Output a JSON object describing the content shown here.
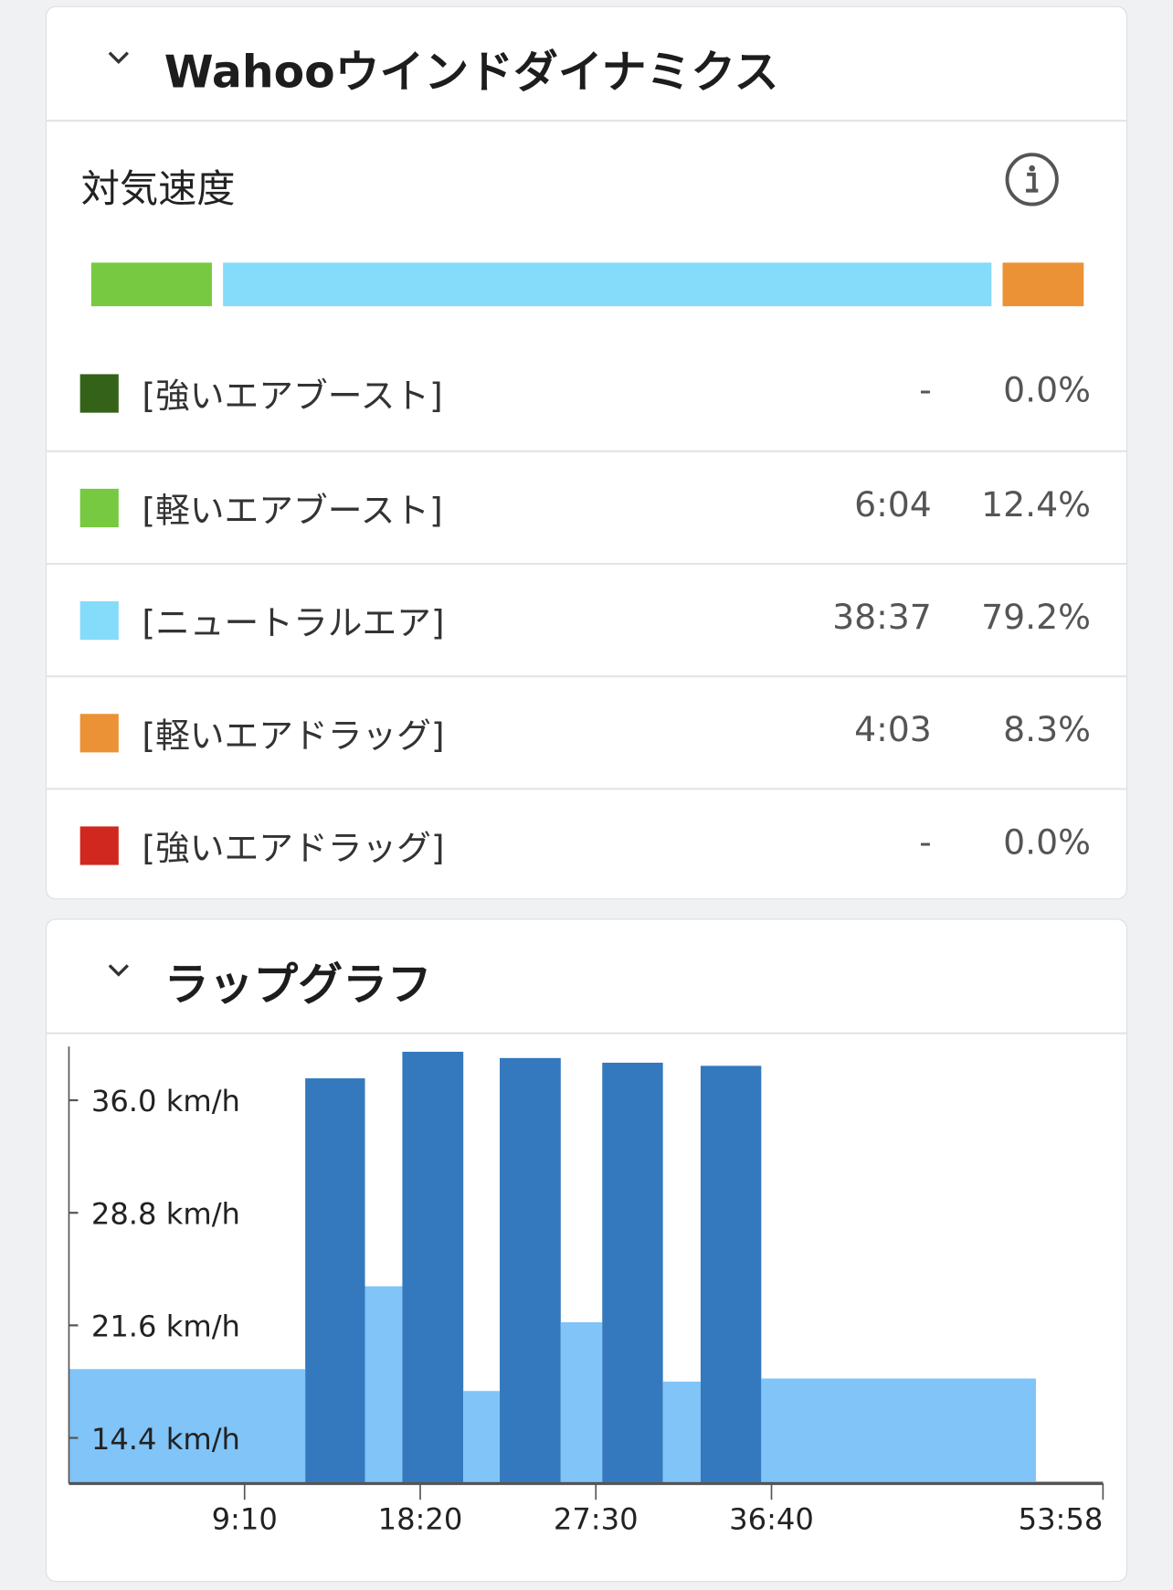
{
  "wind_card": {
    "title": "Wahooウインドダイナミクス",
    "subtitle": "対気速度",
    "icons": {
      "collapse": "chevron-down-icon",
      "info": "info-icon"
    },
    "bar": [
      {
        "color": "#76c940",
        "percent": 12.4
      },
      {
        "color": "#84dbfa",
        "percent": 79.2
      },
      {
        "color": "#ec9236",
        "percent": 8.3
      }
    ],
    "zones": [
      {
        "label": "[強いエアブースト]",
        "time": "-",
        "percent": "0.0%",
        "color": "#356219"
      },
      {
        "label": "[軽いエアブースト]",
        "time": "6:04",
        "percent": "12.4%",
        "color": "#76c940"
      },
      {
        "label": "[ニュートラルエア]",
        "time": "38:37",
        "percent": "79.2%",
        "color": "#84dbfa"
      },
      {
        "label": "[軽いエアドラッグ]",
        "time": "4:03",
        "percent": "8.3%",
        "color": "#ec9236"
      },
      {
        "label": "[強いエアドラッグ]",
        "time": "-",
        "percent": "0.0%",
        "color": "#d0281e"
      }
    ]
  },
  "lap_card": {
    "title": "ラップグラフ"
  },
  "chart_data": {
    "type": "bar",
    "x_unit": "elapsed time",
    "y_unit": "km/h",
    "xlim_seconds": [
      0,
      3238
    ],
    "ylim": [
      11.5,
      40.5
    ],
    "y_ticks": [
      "14.4 km/h",
      "21.6 km/h",
      "28.8 km/h",
      "36.0 km/h"
    ],
    "y_tick_values": [
      14.4,
      21.6,
      28.8,
      36.0
    ],
    "x_ticks": [
      "9:10",
      "18:20",
      "27:30",
      "36:40",
      "53:58"
    ],
    "x_tick_seconds": [
      550,
      1100,
      1650,
      2200,
      3238
    ],
    "colors": {
      "work": "#3479be",
      "rest": "#80c4f8"
    },
    "laps": [
      {
        "duration_s": 740,
        "speed": 18.8,
        "kind": "rest"
      },
      {
        "duration_s": 187,
        "speed": 37.4,
        "kind": "work"
      },
      {
        "duration_s": 117,
        "speed": 24.1,
        "kind": "rest"
      },
      {
        "duration_s": 191,
        "speed": 39.1,
        "kind": "work"
      },
      {
        "duration_s": 114,
        "speed": 17.4,
        "kind": "rest"
      },
      {
        "duration_s": 191,
        "speed": 38.7,
        "kind": "work"
      },
      {
        "duration_s": 130,
        "speed": 21.8,
        "kind": "rest"
      },
      {
        "duration_s": 190,
        "speed": 38.4,
        "kind": "work"
      },
      {
        "duration_s": 118,
        "speed": 18.0,
        "kind": "rest"
      },
      {
        "duration_s": 190,
        "speed": 38.2,
        "kind": "work"
      },
      {
        "duration_s": 860,
        "speed": 18.2,
        "kind": "rest"
      },
      {
        "duration_s": 210,
        "speed": 11.6,
        "kind": "work"
      }
    ]
  }
}
